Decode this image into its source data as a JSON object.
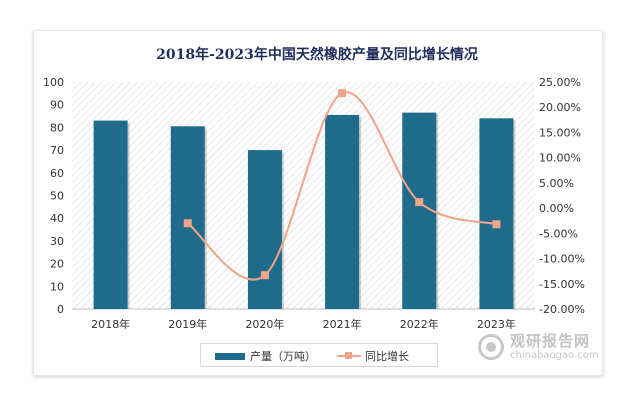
{
  "watermark": {
    "cn": "观研报告网",
    "en": "chinabaogao.com",
    "logo_icon": "chinabaogao-logo-icon"
  },
  "chart_data": {
    "type": "bar+line",
    "title": "2018年-2023年中国天然橡胶产量及同比增长情况",
    "categories": [
      "2018年",
      "2019年",
      "2020年",
      "2021年",
      "2022年",
      "2023年"
    ],
    "series": [
      {
        "name": "产量（万吨）",
        "type": "bar",
        "axis": "left",
        "color": "#1f6b8c",
        "values": [
          83,
          80.5,
          70,
          85.5,
          86.5,
          84
        ]
      },
      {
        "name": "同比增长",
        "type": "line",
        "axis": "right",
        "color": "#f0a488",
        "values": [
          null,
          -3.0,
          -13.3,
          22.8,
          1.2,
          -3.2
        ]
      }
    ],
    "y_left": {
      "min": 0,
      "max": 100,
      "step": 10,
      "ticks": [
        "0",
        "10",
        "20",
        "30",
        "40",
        "50",
        "60",
        "70",
        "80",
        "90",
        "100"
      ]
    },
    "y_right": {
      "min": -20,
      "max": 25,
      "step": 5,
      "ticks": [
        "-20.00%",
        "-15.00%",
        "-10.00%",
        "-5.00%",
        "0.00%",
        "5.00%",
        "10.00%",
        "15.00%",
        "20.00%",
        "25.00%"
      ]
    },
    "legend_position": "bottom",
    "plot_background": "diagonal-hatch"
  }
}
